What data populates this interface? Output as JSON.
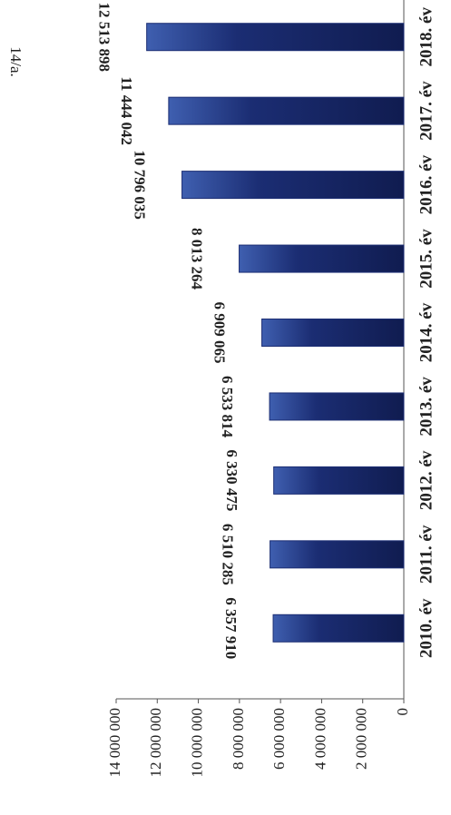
{
  "page_number": "14/a.",
  "chart_data": {
    "type": "bar",
    "categories": [
      "2010. év",
      "2011. év",
      "2012. év",
      "2013. év",
      "2014. év",
      "2015. év",
      "2016. év",
      "2017. év",
      "2018. év"
    ],
    "values": [
      6357910,
      6510285,
      6330475,
      6533814,
      6909065,
      8013264,
      10796035,
      11444042,
      12513898
    ],
    "value_labels": [
      "6 357 910",
      "6 510 285",
      "6 330 475",
      "6 533 814",
      "6 909 065",
      "8 013 264",
      "10 796 035",
      "11 444 042",
      "12 513 898"
    ],
    "color": "#1b2d73",
    "ylim": [
      0,
      14000000
    ],
    "yticks": [
      0,
      {
        "value": 2000000,
        "label": "2 000 000"
      },
      {
        "value": 4000000,
        "label": "4 000 000"
      },
      {
        "value": 6000000,
        "label": "6 000 000"
      },
      {
        "value": 8000000,
        "label": "8 000 000"
      },
      {
        "value": 10000000,
        "label": "10 000 000"
      },
      {
        "value": 12000000,
        "label": "12 000 000"
      },
      {
        "value": 14000000,
        "label": "14 000 000"
      }
    ],
    "grid": false
  }
}
